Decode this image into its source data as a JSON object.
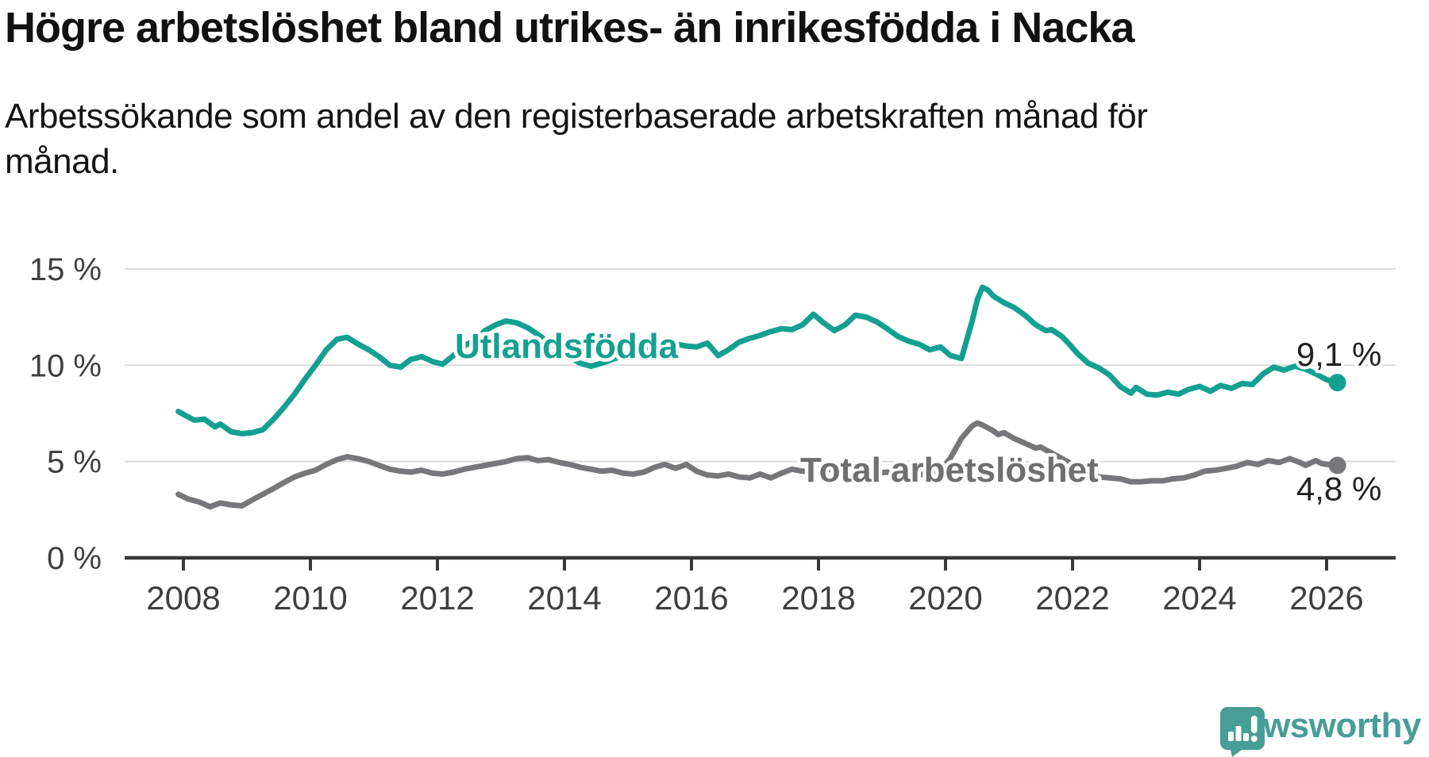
{
  "header": {
    "title": "Högre arbetslöshet bland utrikes- än inrikesfödda i Nacka",
    "subtitle_lines": [
      "Arbetssökande som andel av den registerbaserade arbetskraften månad för",
      "månad."
    ]
  },
  "chart_data": {
    "type": "line",
    "title": "",
    "xlabel": "",
    "ylabel": "",
    "grid": true,
    "x_axis": {
      "ticks": [
        2008,
        2010,
        2012,
        2014,
        2016,
        2018,
        2020,
        2022,
        2024,
        2026
      ]
    },
    "y_axis": {
      "ticks": [
        0,
        5,
        10,
        15
      ],
      "tick_suffix": " %",
      "ylim": [
        0,
        15.5
      ]
    },
    "colors": {
      "accent_teal": "#14a091",
      "line_gray": "#77777b",
      "label_gray": "#6e6e73",
      "grid": "#dadada",
      "axis": "#383838",
      "tick_text": "#3f3f3f",
      "value_text": "#222222"
    },
    "series": [
      {
        "name": "Utlandsfödda",
        "color": "#14a091",
        "end_label": "9,1 %",
        "end_value": 9.1,
        "points": [
          [
            2007.92,
            7.6
          ],
          [
            2008.0,
            7.45
          ],
          [
            2008.17,
            7.15
          ],
          [
            2008.33,
            7.2
          ],
          [
            2008.5,
            6.8
          ],
          [
            2008.58,
            6.95
          ],
          [
            2008.75,
            6.55
          ],
          [
            2008.92,
            6.45
          ],
          [
            2009.08,
            6.5
          ],
          [
            2009.25,
            6.65
          ],
          [
            2009.42,
            7.2
          ],
          [
            2009.58,
            7.8
          ],
          [
            2009.75,
            8.5
          ],
          [
            2009.92,
            9.3
          ],
          [
            2010.08,
            10.0
          ],
          [
            2010.25,
            10.8
          ],
          [
            2010.42,
            11.35
          ],
          [
            2010.58,
            11.45
          ],
          [
            2010.75,
            11.1
          ],
          [
            2010.92,
            10.8
          ],
          [
            2011.08,
            10.45
          ],
          [
            2011.25,
            10.0
          ],
          [
            2011.42,
            9.9
          ],
          [
            2011.58,
            10.3
          ],
          [
            2011.75,
            10.45
          ],
          [
            2011.92,
            10.2
          ],
          [
            2012.08,
            10.05
          ],
          [
            2012.25,
            10.5
          ],
          [
            2012.42,
            11.0
          ],
          [
            2012.58,
            11.3
          ],
          [
            2012.75,
            11.8
          ],
          [
            2012.92,
            12.1
          ],
          [
            2013.08,
            12.3
          ],
          [
            2013.25,
            12.2
          ],
          [
            2013.42,
            11.95
          ],
          [
            2013.58,
            11.6
          ],
          [
            2013.75,
            11.2
          ],
          [
            2013.92,
            10.8
          ],
          [
            2014.08,
            10.45
          ],
          [
            2014.25,
            10.1
          ],
          [
            2014.42,
            9.95
          ],
          [
            2014.58,
            10.1
          ],
          [
            2014.75,
            10.3
          ],
          [
            2014.92,
            10.5
          ],
          [
            2015.08,
            10.6
          ],
          [
            2015.25,
            10.8
          ],
          [
            2015.42,
            10.9
          ],
          [
            2015.58,
            11.0
          ],
          [
            2015.75,
            11.1
          ],
          [
            2015.92,
            11.0
          ],
          [
            2016.08,
            10.95
          ],
          [
            2016.25,
            11.15
          ],
          [
            2016.42,
            10.5
          ],
          [
            2016.58,
            10.8
          ],
          [
            2016.75,
            11.2
          ],
          [
            2016.92,
            11.4
          ],
          [
            2017.08,
            11.55
          ],
          [
            2017.25,
            11.75
          ],
          [
            2017.42,
            11.9
          ],
          [
            2017.58,
            11.85
          ],
          [
            2017.75,
            12.1
          ],
          [
            2017.92,
            12.65
          ],
          [
            2018.08,
            12.2
          ],
          [
            2018.25,
            11.8
          ],
          [
            2018.42,
            12.1
          ],
          [
            2018.58,
            12.6
          ],
          [
            2018.75,
            12.5
          ],
          [
            2018.92,
            12.25
          ],
          [
            2019.08,
            11.9
          ],
          [
            2019.25,
            11.5
          ],
          [
            2019.42,
            11.25
          ],
          [
            2019.58,
            11.1
          ],
          [
            2019.75,
            10.8
          ],
          [
            2019.92,
            10.95
          ],
          [
            2020.08,
            10.5
          ],
          [
            2020.25,
            10.35
          ],
          [
            2020.42,
            12.3
          ],
          [
            2020.5,
            13.4
          ],
          [
            2020.58,
            14.05
          ],
          [
            2020.67,
            13.9
          ],
          [
            2020.75,
            13.6
          ],
          [
            2020.92,
            13.25
          ],
          [
            2021.08,
            13.0
          ],
          [
            2021.25,
            12.6
          ],
          [
            2021.42,
            12.1
          ],
          [
            2021.58,
            11.8
          ],
          [
            2021.67,
            11.85
          ],
          [
            2021.83,
            11.5
          ],
          [
            2021.92,
            11.2
          ],
          [
            2022.08,
            10.6
          ],
          [
            2022.25,
            10.1
          ],
          [
            2022.42,
            9.85
          ],
          [
            2022.58,
            9.5
          ],
          [
            2022.75,
            8.9
          ],
          [
            2022.92,
            8.55
          ],
          [
            2023.0,
            8.85
          ],
          [
            2023.17,
            8.5
          ],
          [
            2023.33,
            8.45
          ],
          [
            2023.5,
            8.6
          ],
          [
            2023.67,
            8.5
          ],
          [
            2023.83,
            8.75
          ],
          [
            2024.0,
            8.9
          ],
          [
            2024.17,
            8.65
          ],
          [
            2024.33,
            8.95
          ],
          [
            2024.5,
            8.8
          ],
          [
            2024.67,
            9.05
          ],
          [
            2024.83,
            9.0
          ],
          [
            2025.0,
            9.55
          ],
          [
            2025.17,
            9.9
          ],
          [
            2025.33,
            9.75
          ],
          [
            2025.5,
            9.95
          ],
          [
            2025.67,
            9.8
          ],
          [
            2025.83,
            9.55
          ],
          [
            2026.0,
            9.25
          ],
          [
            2026.17,
            9.1
          ]
        ]
      },
      {
        "name": "Total arbetslöshet",
        "color": "#77777b",
        "end_label": "4,8 %",
        "end_value": 4.8,
        "points": [
          [
            2007.92,
            3.3
          ],
          [
            2008.08,
            3.05
          ],
          [
            2008.25,
            2.9
          ],
          [
            2008.42,
            2.65
          ],
          [
            2008.58,
            2.85
          ],
          [
            2008.75,
            2.75
          ],
          [
            2008.92,
            2.7
          ],
          [
            2009.08,
            3.0
          ],
          [
            2009.25,
            3.3
          ],
          [
            2009.42,
            3.6
          ],
          [
            2009.58,
            3.9
          ],
          [
            2009.75,
            4.2
          ],
          [
            2009.92,
            4.4
          ],
          [
            2010.08,
            4.55
          ],
          [
            2010.25,
            4.85
          ],
          [
            2010.42,
            5.1
          ],
          [
            2010.58,
            5.25
          ],
          [
            2010.75,
            5.15
          ],
          [
            2010.92,
            5.0
          ],
          [
            2011.08,
            4.8
          ],
          [
            2011.25,
            4.6
          ],
          [
            2011.42,
            4.5
          ],
          [
            2011.58,
            4.45
          ],
          [
            2011.75,
            4.55
          ],
          [
            2011.92,
            4.4
          ],
          [
            2012.08,
            4.35
          ],
          [
            2012.25,
            4.45
          ],
          [
            2012.42,
            4.6
          ],
          [
            2012.58,
            4.7
          ],
          [
            2012.75,
            4.8
          ],
          [
            2012.92,
            4.9
          ],
          [
            2013.08,
            5.0
          ],
          [
            2013.25,
            5.15
          ],
          [
            2013.42,
            5.2
          ],
          [
            2013.58,
            5.05
          ],
          [
            2013.75,
            5.1
          ],
          [
            2013.92,
            4.95
          ],
          [
            2014.08,
            4.85
          ],
          [
            2014.25,
            4.7
          ],
          [
            2014.42,
            4.6
          ],
          [
            2014.58,
            4.5
          ],
          [
            2014.75,
            4.55
          ],
          [
            2014.92,
            4.4
          ],
          [
            2015.08,
            4.35
          ],
          [
            2015.25,
            4.45
          ],
          [
            2015.42,
            4.7
          ],
          [
            2015.58,
            4.85
          ],
          [
            2015.75,
            4.65
          ],
          [
            2015.92,
            4.85
          ],
          [
            2016.08,
            4.5
          ],
          [
            2016.25,
            4.3
          ],
          [
            2016.42,
            4.25
          ],
          [
            2016.58,
            4.35
          ],
          [
            2016.75,
            4.2
          ],
          [
            2016.92,
            4.15
          ],
          [
            2017.08,
            4.35
          ],
          [
            2017.25,
            4.15
          ],
          [
            2017.42,
            4.4
          ],
          [
            2017.58,
            4.6
          ],
          [
            2017.75,
            4.5
          ],
          [
            2017.92,
            4.45
          ],
          [
            2018.08,
            4.55
          ],
          [
            2018.25,
            4.6
          ],
          [
            2018.42,
            4.5
          ],
          [
            2018.58,
            4.55
          ],
          [
            2018.75,
            4.45
          ],
          [
            2018.92,
            4.4
          ],
          [
            2019.08,
            4.45
          ],
          [
            2019.25,
            4.35
          ],
          [
            2019.42,
            4.4
          ],
          [
            2019.58,
            4.3
          ],
          [
            2019.75,
            4.4
          ],
          [
            2019.92,
            4.5
          ],
          [
            2020.08,
            5.2
          ],
          [
            2020.25,
            6.2
          ],
          [
            2020.42,
            6.85
          ],
          [
            2020.5,
            7.0
          ],
          [
            2020.58,
            6.9
          ],
          [
            2020.75,
            6.6
          ],
          [
            2020.83,
            6.4
          ],
          [
            2020.92,
            6.5
          ],
          [
            2021.08,
            6.2
          ],
          [
            2021.25,
            5.95
          ],
          [
            2021.42,
            5.7
          ],
          [
            2021.5,
            5.75
          ],
          [
            2021.58,
            5.6
          ],
          [
            2021.75,
            5.3
          ],
          [
            2021.92,
            5.0
          ],
          [
            2022.08,
            4.7
          ],
          [
            2022.25,
            4.45
          ],
          [
            2022.42,
            4.2
          ],
          [
            2022.58,
            4.15
          ],
          [
            2022.75,
            4.1
          ],
          [
            2022.92,
            3.95
          ],
          [
            2023.08,
            3.95
          ],
          [
            2023.25,
            4.0
          ],
          [
            2023.42,
            4.0
          ],
          [
            2023.58,
            4.1
          ],
          [
            2023.75,
            4.15
          ],
          [
            2023.92,
            4.3
          ],
          [
            2024.08,
            4.5
          ],
          [
            2024.25,
            4.55
          ],
          [
            2024.42,
            4.65
          ],
          [
            2024.58,
            4.75
          ],
          [
            2024.75,
            4.95
          ],
          [
            2024.92,
            4.85
          ],
          [
            2025.08,
            5.05
          ],
          [
            2025.25,
            4.95
          ],
          [
            2025.42,
            5.15
          ],
          [
            2025.58,
            4.95
          ],
          [
            2025.67,
            4.8
          ],
          [
            2025.83,
            5.05
          ],
          [
            2025.92,
            4.9
          ],
          [
            2026.0,
            4.85
          ],
          [
            2026.17,
            4.8
          ]
        ]
      }
    ],
    "legend_position": "inline-labels"
  },
  "footer": {
    "brand": "Newsworthy",
    "brand_color": "#479e97",
    "logo_icon": "newsworthy-speech-bubble-bar-chart-icon"
  }
}
